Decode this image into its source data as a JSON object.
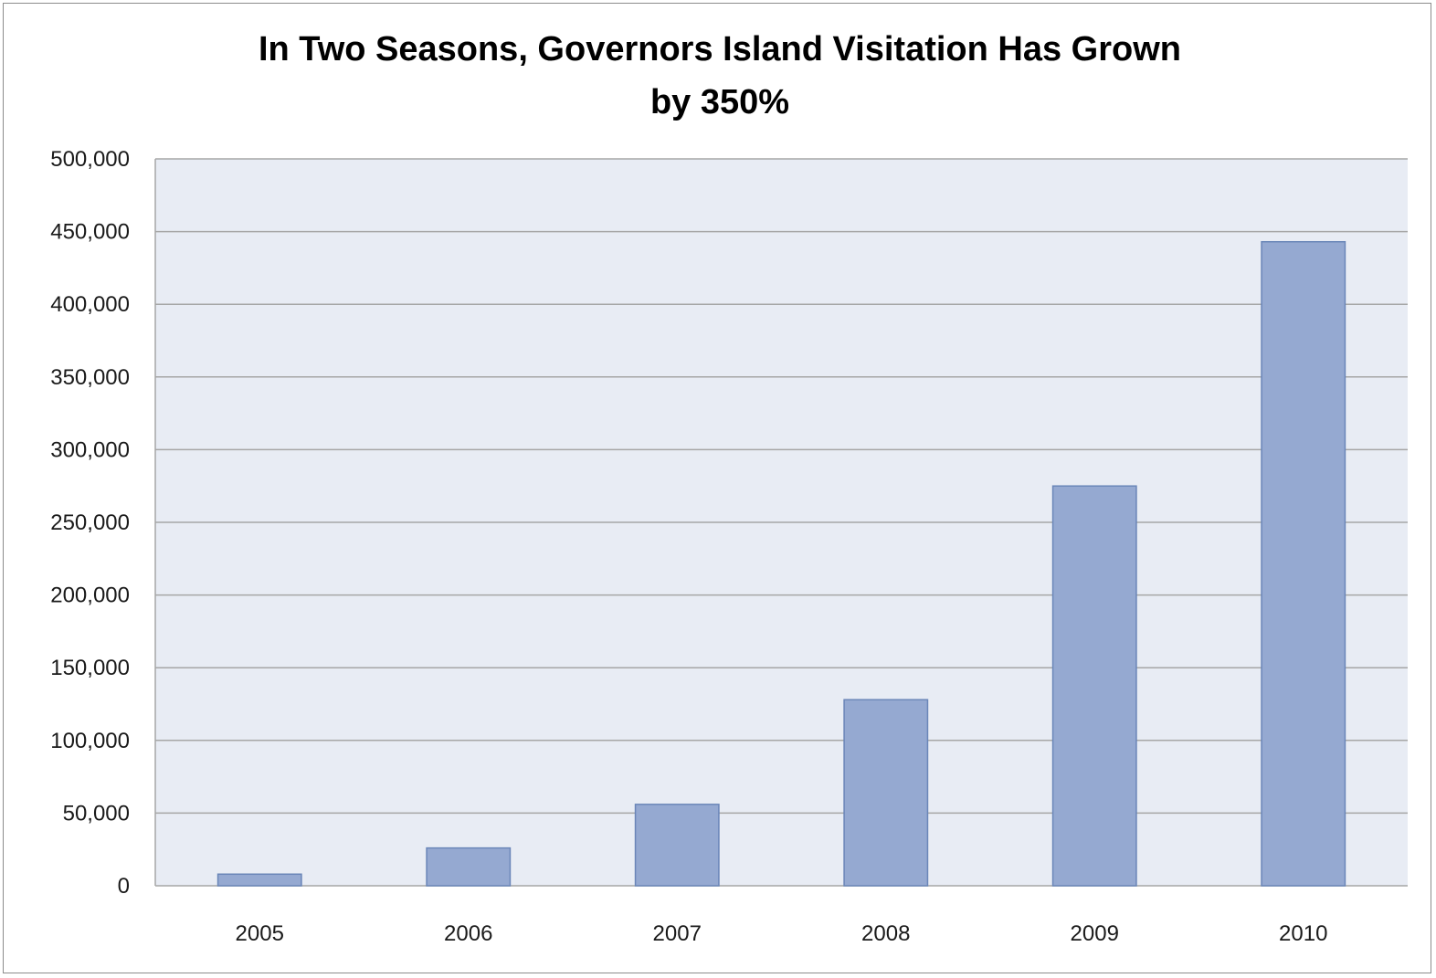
{
  "chart_data": {
    "type": "bar",
    "title_lines": [
      "In Two Seasons, Governors Island Visitation Has Grown",
      "by 350%"
    ],
    "categories": [
      "2005",
      "2006",
      "2007",
      "2008",
      "2009",
      "2010"
    ],
    "values": [
      8000,
      26000,
      56000,
      128000,
      275000,
      443000
    ],
    "ylim": [
      0,
      500000
    ],
    "y_ticks": [
      0,
      50000,
      100000,
      150000,
      200000,
      250000,
      300000,
      350000,
      400000,
      450000,
      500000
    ],
    "y_tick_labels": [
      "0",
      "50,000",
      "100,000",
      "150,000",
      "200,000",
      "250,000",
      "300,000",
      "350,000",
      "400,000",
      "450,000",
      "500,000"
    ],
    "grid": true,
    "legend": "none",
    "colors": {
      "bar_fill": "#95a9d1",
      "bar_stroke": "#6a86b8",
      "plot_background": "#e8ecf4",
      "gridline": "#a6a6a6"
    }
  }
}
